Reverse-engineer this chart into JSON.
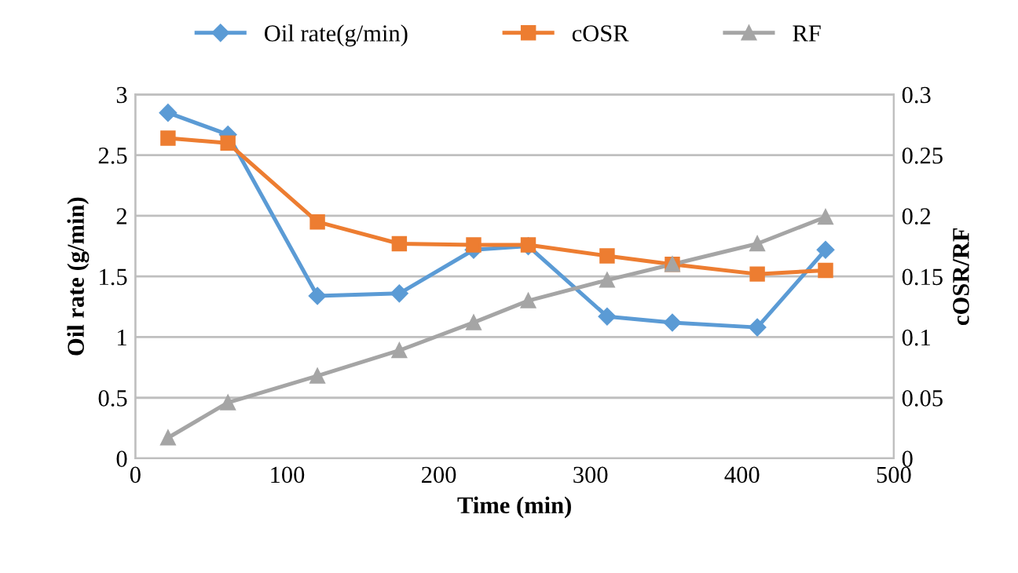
{
  "chart_data": {
    "type": "line",
    "xlabel": "Time (min)",
    "ylabel": "Oil rate (g/min)",
    "y2label": "cOSR/RF",
    "x": [
      21.5,
      61,
      120,
      174,
      223,
      259,
      311,
      354,
      410,
      455
    ],
    "series": [
      {
        "name": "Oil rate(g/min)",
        "color": "#5b9bd5",
        "marker": "diamond",
        "values": [
          2.85,
          2.67,
          1.34,
          1.36,
          1.72,
          1.75,
          1.17,
          1.12,
          1.08,
          1.72
        ]
      },
      {
        "name": "cOSR",
        "color": "#ed7d31",
        "marker": "square",
        "axis": "y2",
        "values": [
          0.264,
          0.26,
          0.195,
          0.177,
          0.176,
          0.176,
          0.167,
          0.16,
          0.152,
          0.155
        ]
      },
      {
        "name": "RF",
        "color": "#a5a5a5",
        "marker": "triangle",
        "axis": "y2",
        "values": [
          0.017,
          0.046,
          0.068,
          0.089,
          0.112,
          0.13,
          0.147,
          0.16,
          0.177,
          0.199
        ]
      }
    ],
    "xlim": [
      0,
      500
    ],
    "xticks": [
      0,
      100,
      200,
      300,
      400,
      500
    ],
    "ylim": [
      0,
      3
    ],
    "yticks": [
      0,
      0.5,
      1,
      1.5,
      2,
      2.5,
      3
    ],
    "y2lim": [
      0,
      0.3
    ],
    "y2ticks": [
      0,
      0.05,
      0.1,
      0.15,
      0.2,
      0.25,
      0.3
    ],
    "grid": "y",
    "legend": "top",
    "line_style": "solid"
  }
}
